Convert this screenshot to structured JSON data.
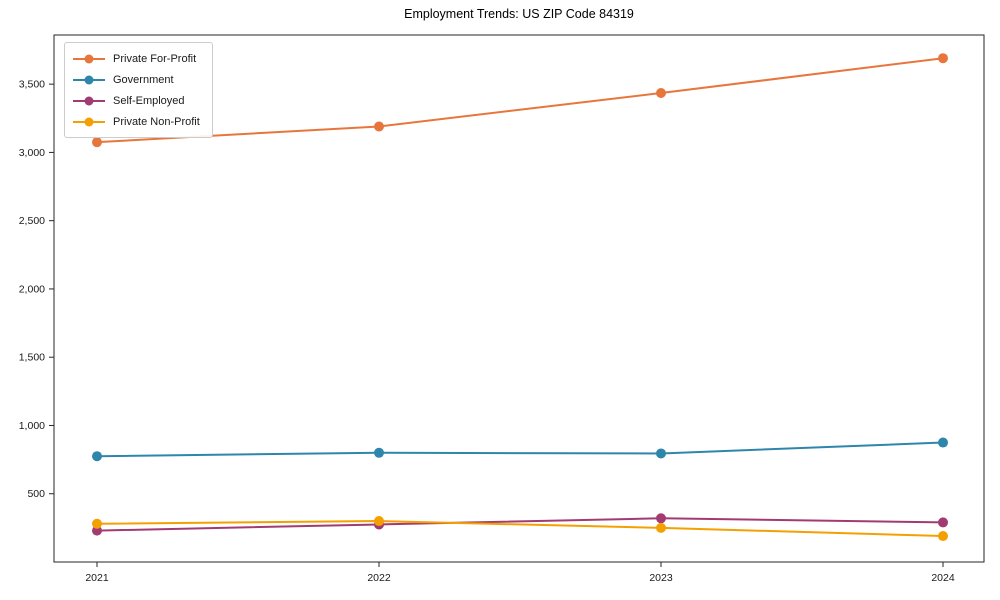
{
  "chart_data": {
    "type": "line",
    "title": "Employment Trends: US ZIP Code 84319",
    "xlabel": "",
    "ylabel": "",
    "x": [
      2021,
      2022,
      2023,
      2024
    ],
    "x_tick_labels": [
      "2021",
      "2022",
      "2023",
      "2024"
    ],
    "yticks": [
      500,
      1000,
      1500,
      2000,
      2500,
      3000,
      3500
    ],
    "ytick_labels": [
      "500",
      "1,000",
      "1,500",
      "2,000",
      "2,500",
      "3,000",
      "3,500"
    ],
    "ylim": [
      0,
      3860
    ],
    "grid": false,
    "legend_position": "upper left",
    "series": [
      {
        "name": "Private For-Profit",
        "color": "#E8763C",
        "values": [
          3075,
          3190,
          3435,
          3690
        ]
      },
      {
        "name": "Government",
        "color": "#2E86AB",
        "values": [
          775,
          800,
          795,
          875
        ]
      },
      {
        "name": "Self-Employed",
        "color": "#A23B72",
        "values": [
          230,
          275,
          320,
          290
        ]
      },
      {
        "name": "Private Non-Profit",
        "color": "#F5A002",
        "values": [
          280,
          300,
          250,
          190
        ]
      }
    ],
    "axis_color": "#262626",
    "tick_label_color": "#1a1a1a"
  }
}
